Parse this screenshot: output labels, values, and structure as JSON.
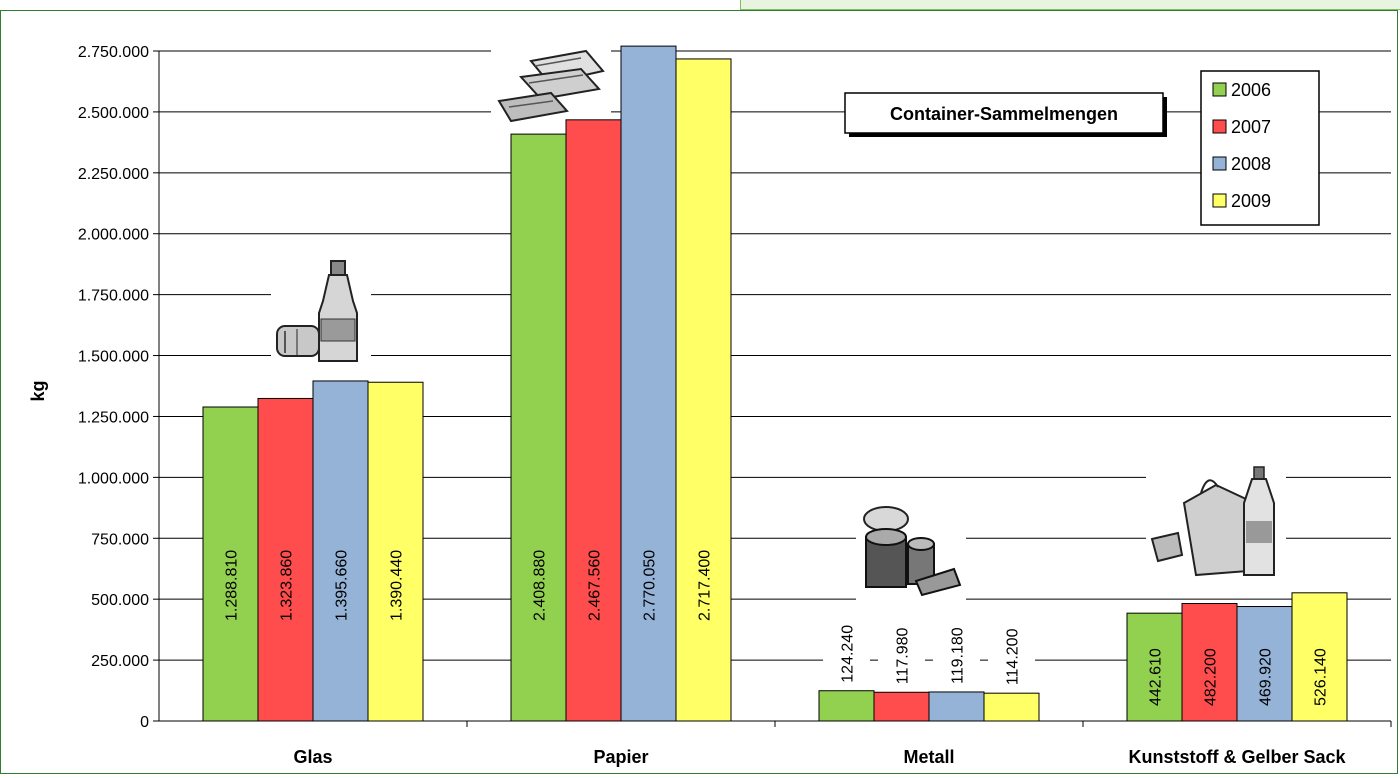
{
  "chart_data": {
    "type": "bar",
    "title": "Container-Sammelmengen",
    "ylabel": "kg",
    "xlabel": "",
    "categories": [
      "Glas",
      "Papier",
      "Metall",
      "Kunststoff & Gelber Sack"
    ],
    "series": [
      {
        "name": "2006",
        "color": "#92d050",
        "values": [
          1288810,
          2408880,
          124240,
          442610
        ],
        "labels": [
          "1.288.810",
          "2.408.880",
          "124.240",
          "442.610"
        ]
      },
      {
        "name": "2007",
        "color": "#ff4d4d",
        "values": [
          1323860,
          2467560,
          117980,
          482200
        ],
        "labels": [
          "1.323.860",
          "2.467.560",
          "117.980",
          "482.200"
        ]
      },
      {
        "name": "2008",
        "color": "#95b3d7",
        "values": [
          1395660,
          2770050,
          119180,
          469920
        ],
        "labels": [
          "1.395.660",
          "2.770.050",
          "119.180",
          "469.920"
        ]
      },
      {
        "name": "2009",
        "color": "#ffff66",
        "values": [
          1390440,
          2717400,
          114200,
          526140
        ],
        "labels": [
          "1.390.440",
          "2.717.400",
          "114.200",
          "526.140"
        ]
      }
    ],
    "ylim": [
      0,
      2750000
    ],
    "yticks": [
      0,
      250000,
      500000,
      750000,
      1000000,
      1250000,
      1500000,
      1750000,
      2000000,
      2250000,
      2500000,
      2750000
    ],
    "ytick_labels": [
      "0",
      "250.000",
      "500.000",
      "750.000",
      "1.000.000",
      "1.250.000",
      "1.500.000",
      "1.750.000",
      "2.000.000",
      "2.250.000",
      "2.500.000",
      "2.750.000"
    ],
    "grid": true,
    "legend_position": "top-right",
    "category_icons": [
      "bottle-jar-icon",
      "newspaper-icon",
      "tin-can-icon",
      "plastic-bag-bottle-icon"
    ]
  }
}
